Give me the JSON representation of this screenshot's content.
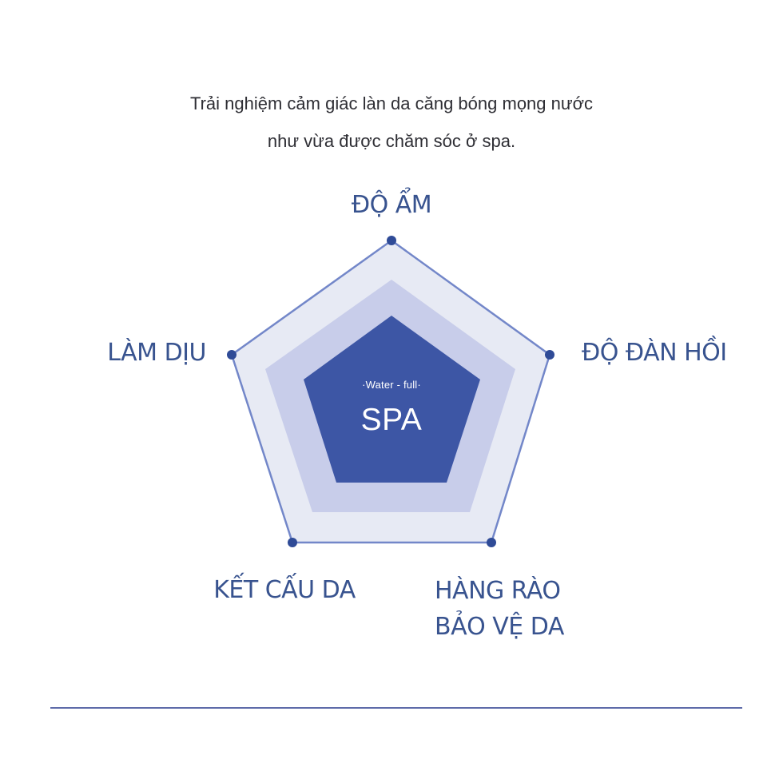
{
  "intro": {
    "line1": "Trải nghiệm cảm giác làn da căng bóng mọng nước",
    "line2": "như vừa được chăm sóc ở spa."
  },
  "diagram": {
    "labels": {
      "top": "ĐỘ ẨM",
      "right": "ĐỘ ĐÀN HỒI",
      "left": "LÀM DỊU",
      "bottom_left": "KẾT CẤU DA",
      "bottom_right_line1": "HÀNG RÀO",
      "bottom_right_line2": "BẢO VỆ DA"
    },
    "center": {
      "subtitle": "·Water - full·",
      "title": "SPA"
    },
    "colors": {
      "outer_fill": "#e7eaf4",
      "middle_fill": "#c8cdea",
      "inner_fill": "#3d56a5",
      "line": "#6f86c8",
      "dot": "#2f4b97",
      "label": "#38538f"
    }
  }
}
